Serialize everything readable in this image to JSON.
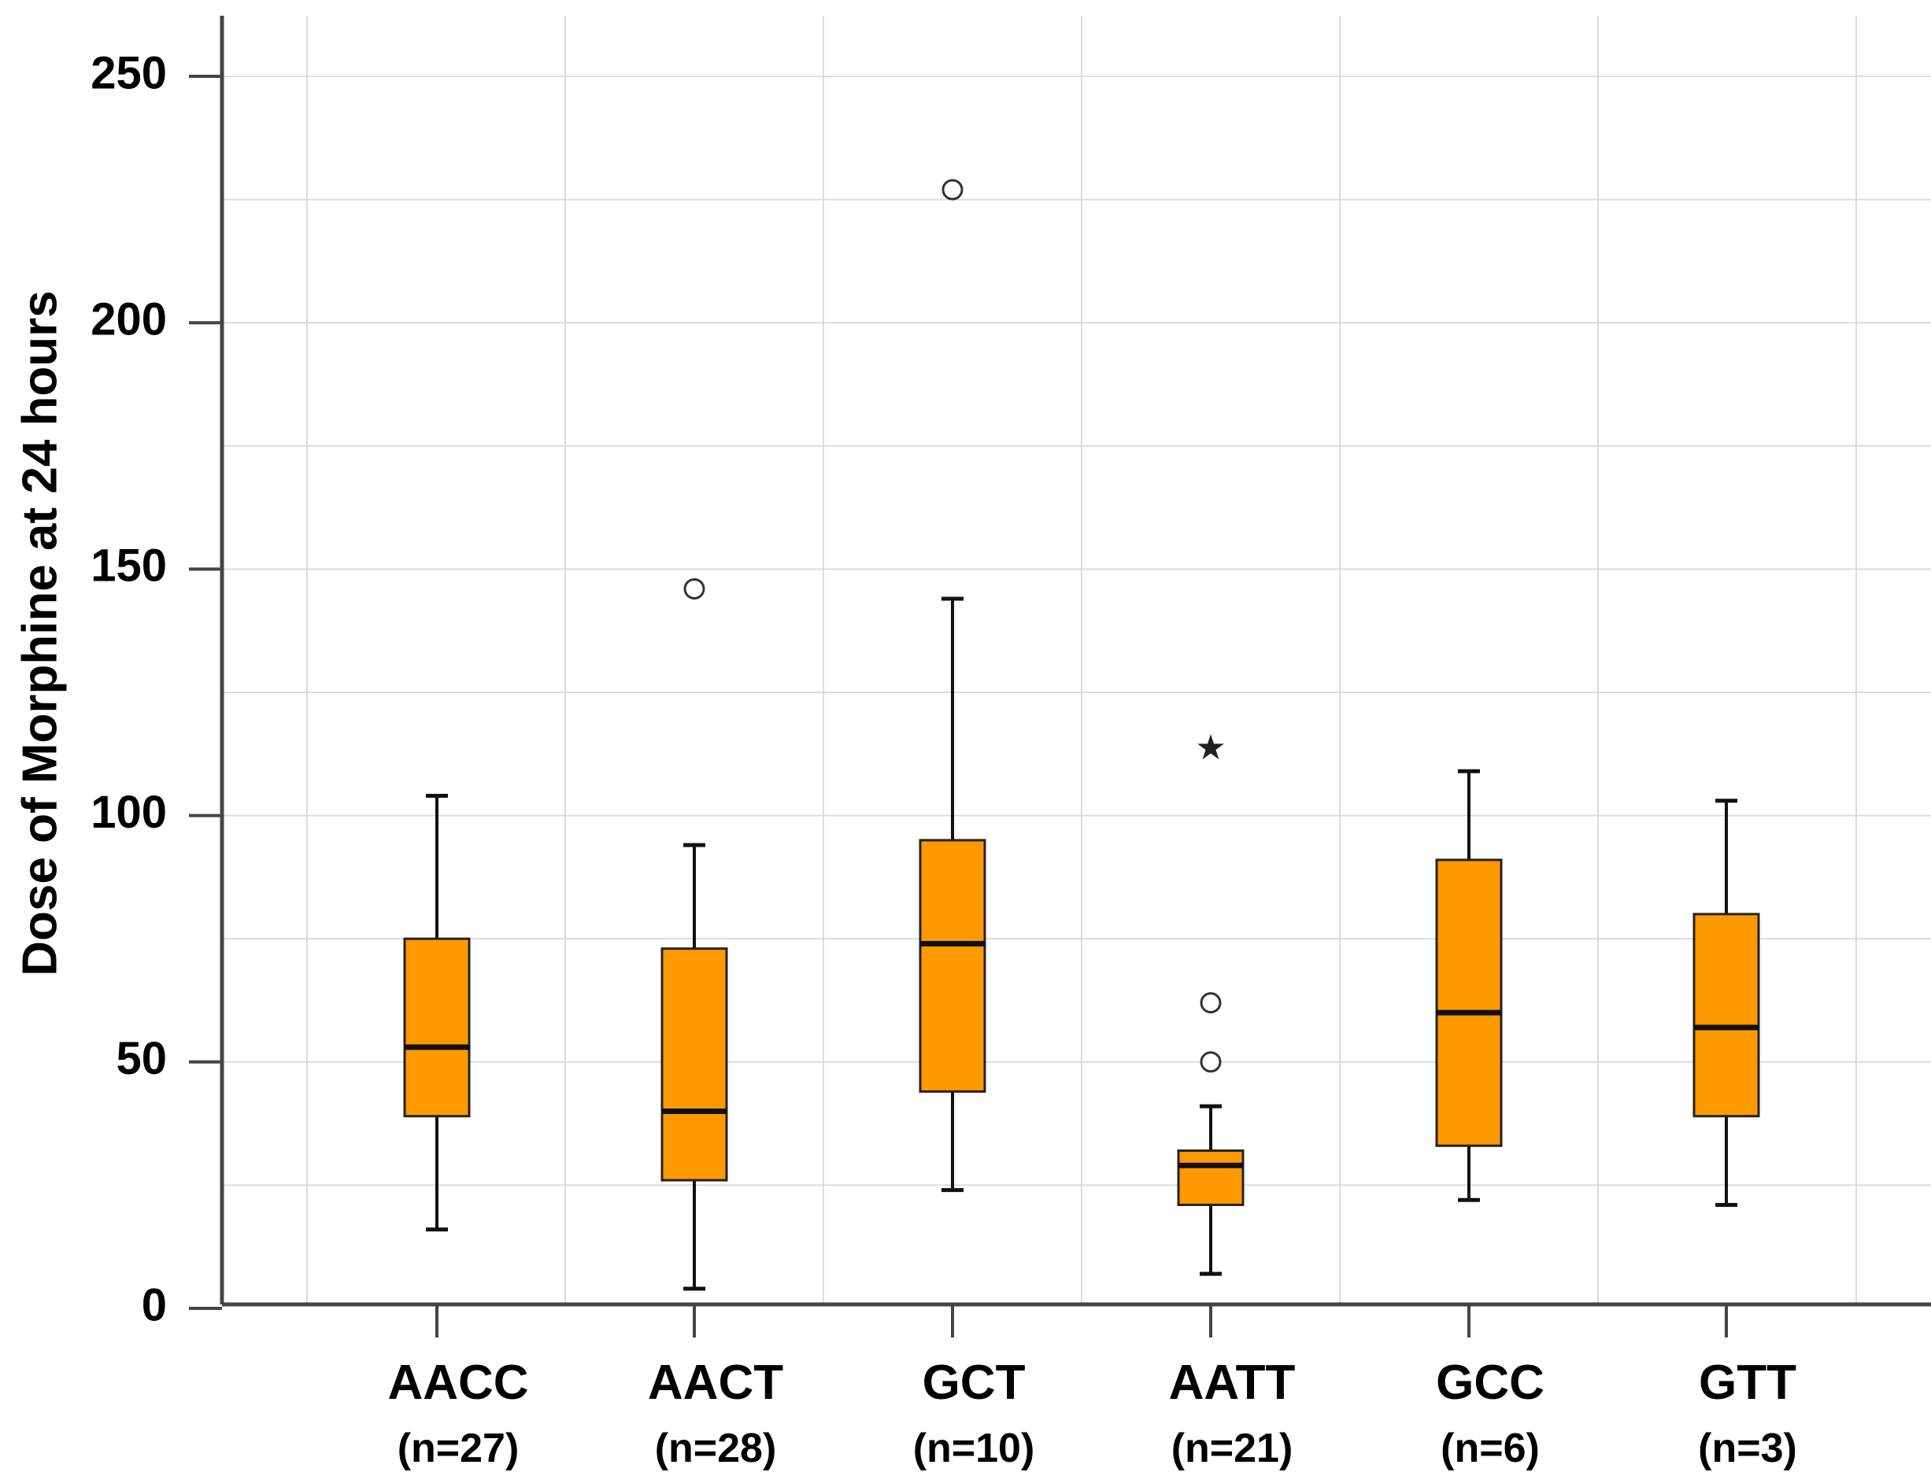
{
  "chart_data": {
    "type": "box",
    "title": "",
    "xlabel": "",
    "ylabel": "Dose of Morphine at 24 hours",
    "ylim": [
      0,
      250
    ],
    "yticks": [
      "0",
      "50",
      "100",
      "150",
      "200",
      "250"
    ],
    "grid": true,
    "box_color": "#ff9900",
    "categories": [
      {
        "label": "AACC",
        "n_label": "(n=27)",
        "whisker_low": 16,
        "q1": 39,
        "median": 53,
        "q3": 75,
        "whisker_high": 104,
        "outliers": [],
        "extremes": []
      },
      {
        "label": "AACT",
        "n_label": "(n=28)",
        "whisker_low": 4,
        "q1": 26,
        "median": 40,
        "q3": 73,
        "whisker_high": 94,
        "outliers": [
          146
        ],
        "extremes": []
      },
      {
        "label": "GCT",
        "n_label": "(n=10)",
        "whisker_low": 24,
        "q1": 44,
        "median": 74,
        "q3": 95,
        "whisker_high": 144,
        "outliers": [
          227
        ],
        "extremes": []
      },
      {
        "label": "AATT",
        "n_label": "(n=21)",
        "whisker_low": 7,
        "q1": 21,
        "median": 29,
        "q3": 32,
        "whisker_high": 41,
        "outliers": [
          50,
          62
        ],
        "extremes": [
          114
        ]
      },
      {
        "label": "GCC",
        "n_label": "(n=6)",
        "whisker_low": 22,
        "q1": 33,
        "median": 60,
        "q3": 91,
        "whisker_high": 109,
        "outliers": [],
        "extremes": []
      },
      {
        "label": "GTT",
        "n_label": "(n=3)",
        "whisker_low": 21,
        "q1": 39,
        "median": 57,
        "q3": 80,
        "whisker_high": 103,
        "outliers": [],
        "extremes": []
      }
    ]
  }
}
